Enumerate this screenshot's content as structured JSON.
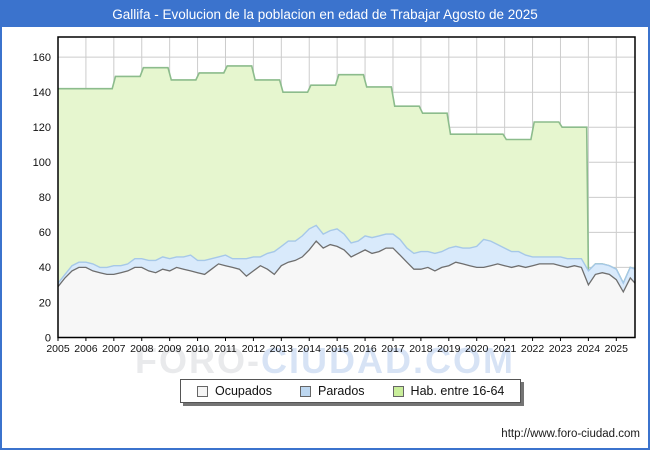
{
  "window": {
    "title": "Gallifa - Evolucion de la poblacion en edad de Trabajar Agosto de 2025"
  },
  "watermark": {
    "part1": "FORO-",
    "part2": "CIUDAD.COM"
  },
  "footer": {
    "url": "http://www.foro-ciudad.com"
  },
  "legend": {
    "items": [
      {
        "label": "Ocupados",
        "color": "#f5f5f5"
      },
      {
        "label": "Parados",
        "color": "#bdd7f0"
      },
      {
        "label": "Hab. entre 16-64",
        "color": "#c9ee9a"
      }
    ]
  },
  "chart_data": {
    "type": "area",
    "title": "Gallifa - Evolucion de la poblacion en edad de Trabajar Agosto de 2025",
    "legend_position": "bottom",
    "grid": true,
    "x_axis": {
      "ticks": [
        2005,
        2006,
        2007,
        2008,
        2009,
        2010,
        2011,
        2012,
        2013,
        2014,
        2015,
        2016,
        2017,
        2018,
        2019,
        2020,
        2021,
        2022,
        2023,
        2024,
        2025
      ],
      "range": [
        2005,
        2025.67
      ]
    },
    "y_axis": {
      "ticks": [
        0,
        20,
        40,
        60,
        80,
        100,
        120,
        140,
        160
      ],
      "range": [
        0,
        171.5
      ]
    },
    "series": [
      {
        "name": "Hab. entre 16-64",
        "type": "yearly_step",
        "fill": "#e6f6cf",
        "line": "#8cbc8c",
        "years": [
          2005,
          2006,
          2007,
          2008,
          2009,
          2010,
          2011,
          2012,
          2013,
          2014,
          2015,
          2016,
          2017,
          2018,
          2019,
          2020,
          2021,
          2022,
          2023
        ],
        "values": [
          142,
          142,
          149,
          154,
          147,
          151,
          155,
          147,
          140,
          144,
          150,
          143,
          132,
          128,
          116,
          116,
          113,
          123,
          120
        ],
        "tail_follows_stack_from": 2024
      },
      {
        "name": "Parados",
        "stacked_on": "Ocupados",
        "fill": "#d9eafb",
        "line": "#a6c8e8",
        "x_start": 2005,
        "x_step": 0.25,
        "x_end": 2025.67,
        "values": [
          2,
          2,
          3,
          3,
          3,
          4,
          3,
          4,
          5,
          4,
          4,
          5,
          5,
          6,
          7,
          7,
          7,
          6,
          7,
          9,
          7,
          8,
          6,
          4,
          6,
          5,
          6,
          10,
          8,
          5,
          9,
          13,
          11,
          12,
          11,
          12,
          12,
          9,
          8,
          8,
          10,
          9,
          8,
          7,
          8,
          9,
          9,
          8,
          8,
          9,
          8,
          9,
          10,
          9,
          10,
          9,
          10,
          9,
          9,
          10,
          12,
          16,
          14,
          11,
          10,
          9,
          8,
          7,
          5,
          4,
          4,
          4,
          5,
          5,
          4,
          5,
          8,
          6,
          5,
          5,
          6,
          5,
          6,
          8
        ]
      },
      {
        "name": "Ocupados",
        "fill": "#f7f7f7",
        "line": "#6e6e6e",
        "x_start": 2005,
        "x_step": 0.25,
        "x_end": 2025.67,
        "values": [
          29,
          34,
          38,
          40,
          40,
          38,
          37,
          36,
          36,
          37,
          38,
          40,
          40,
          38,
          37,
          39,
          38,
          40,
          39,
          38,
          37,
          36,
          39,
          42,
          41,
          40,
          39,
          35,
          38,
          41,
          39,
          36,
          41,
          43,
          44,
          46,
          50,
          55,
          51,
          53,
          52,
          50,
          46,
          48,
          50,
          48,
          49,
          51,
          51,
          47,
          43,
          39,
          39,
          40,
          38,
          40,
          41,
          43,
          42,
          41,
          40,
          40,
          41,
          42,
          41,
          40,
          41,
          40,
          41,
          42,
          42,
          42,
          41,
          40,
          41,
          40,
          30,
          36,
          37,
          36,
          33,
          26,
          34,
          31
        ]
      }
    ],
    "plot_colors": {
      "grid": "#cccccc",
      "axis_border": "#000000",
      "title_bar": "#3b73cd",
      "frame_border": "#3b73cd"
    }
  }
}
